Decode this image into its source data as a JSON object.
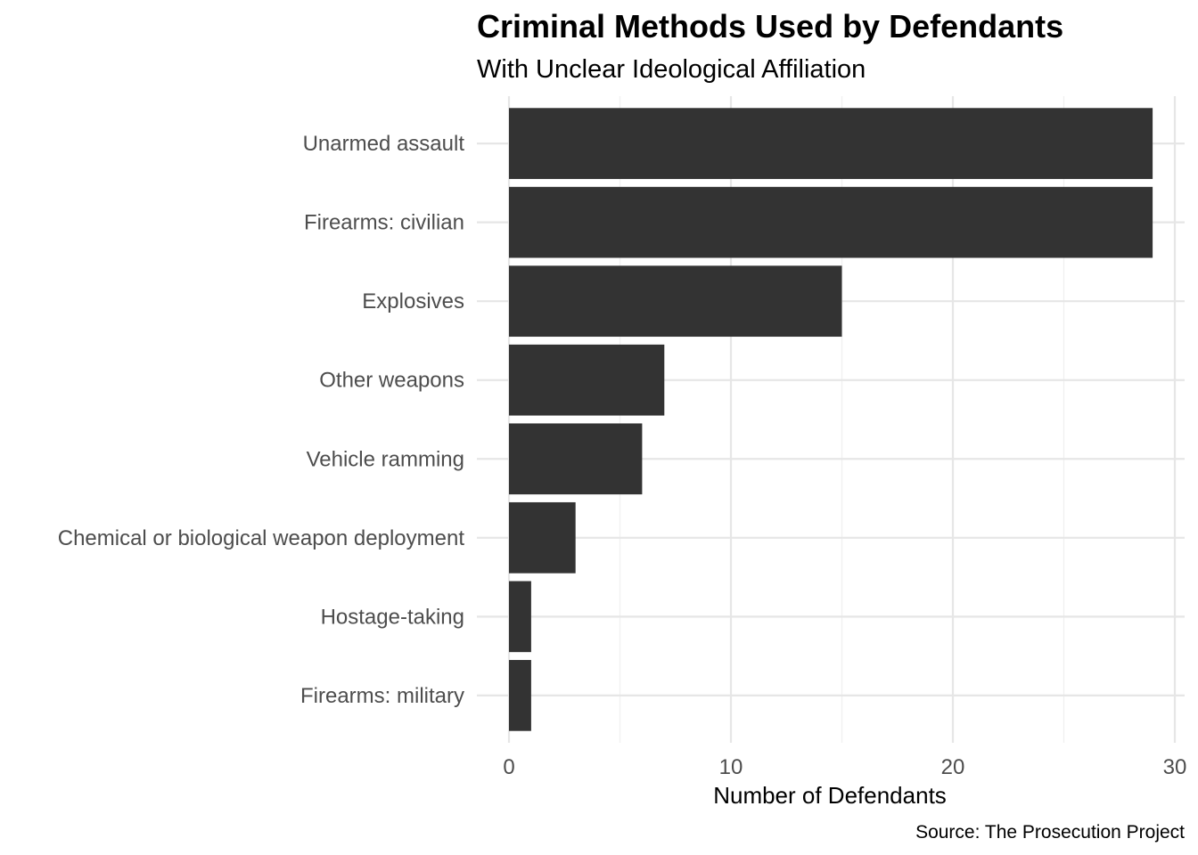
{
  "chart_data": {
    "type": "bar",
    "orientation": "horizontal",
    "title": "Criminal Methods Used by Defendants",
    "subtitle": "With Unclear Ideological Affiliation",
    "xlabel": "Number of Defendants",
    "ylabel": "",
    "caption": "Source: The Prosecution Project",
    "categories": [
      "Unarmed assault",
      "Firearms: civilian",
      "Explosives",
      "Other weapons",
      "Vehicle ramming",
      "Chemical or biological weapon deployment",
      "Hostage-taking",
      "Firearms: military"
    ],
    "values": [
      29,
      29,
      15,
      7,
      6,
      3,
      1,
      1
    ],
    "xlim": [
      0,
      30
    ],
    "xticks": [
      "0",
      "10",
      "20",
      "30"
    ],
    "grid": true,
    "legend": "none",
    "colors": {
      "bar": "#333333",
      "grid_major": "#e6e6e6",
      "grid_minor": "#f0f0f0"
    }
  }
}
